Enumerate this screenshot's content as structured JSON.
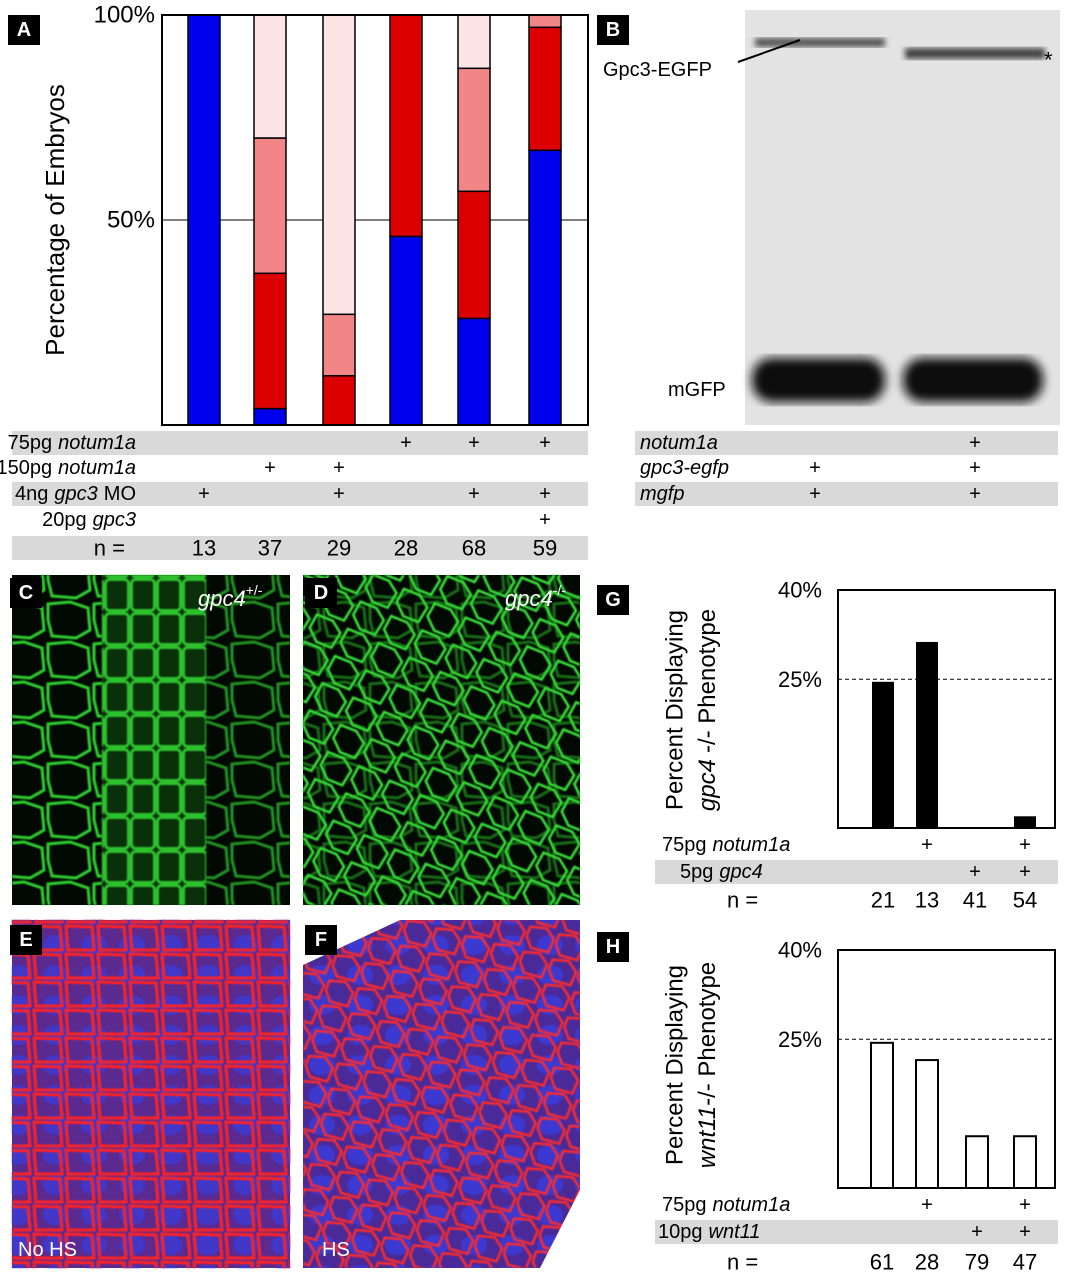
{
  "chart_data": [
    {
      "type": "stacked_bar",
      "panel_label": "A",
      "ylabel": "Percentage of Embryos",
      "ylim": [
        0,
        100
      ],
      "yticks": [
        {
          "value": 100,
          "label": "100%"
        },
        {
          "value": 50,
          "label": "50%"
        }
      ],
      "grid": true,
      "edgecolor": "#000000",
      "series": [
        {
          "color": "#0000ee",
          "values": [
            100,
            4,
            0,
            46,
            26,
            67
          ]
        },
        {
          "color": "#dd0000",
          "values": [
            0,
            33,
            12,
            54,
            31,
            30
          ]
        },
        {
          "color": "#f28585",
          "values": [
            0,
            33,
            15,
            0,
            30,
            3
          ]
        },
        {
          "color": "#fde4e4",
          "values": [
            0,
            30,
            73,
            0,
            13,
            0
          ]
        }
      ],
      "conditions": [
        {
          "dose": "75pg",
          "gene": "notum1a",
          "marks": [
            null,
            null,
            null,
            "+",
            "+",
            "+"
          ]
        },
        {
          "dose": "150pg",
          "gene": "notum1a",
          "marks": [
            null,
            "+",
            "+",
            null,
            null,
            null
          ]
        },
        {
          "dose": "4ng",
          "gene": "gpc3",
          "suffix": "MO",
          "marks": [
            "+",
            null,
            "+",
            null,
            "+",
            "+"
          ]
        },
        {
          "dose": "20pg",
          "gene": "gpc3",
          "marks": [
            null,
            null,
            null,
            null,
            null,
            "+"
          ]
        }
      ],
      "n_label": "n =",
      "n": [
        13,
        37,
        29,
        28,
        68,
        59
      ]
    },
    {
      "type": "bar",
      "panel_label": "G",
      "ylabel": {
        "line1": "Percent Displaying",
        "gene": "gpc4",
        "rest": "-/- Phenotype"
      },
      "ylim": [
        0,
        40
      ],
      "yticks": [
        {
          "value": 40,
          "label": "40%"
        },
        {
          "value": 25,
          "label": "25%"
        }
      ],
      "grid": true,
      "dashed_grid": true,
      "color": "#000000",
      "edgecolor": "#000000",
      "values": [
        24.4,
        31.1,
        0,
        1.8
      ],
      "conditions": [
        {
          "dose": "75pg",
          "gene": "notum1a",
          "marks": [
            null,
            "+",
            null,
            "+"
          ]
        },
        {
          "dose": "5pg",
          "gene": "gpc4",
          "marks": [
            null,
            null,
            "+",
            "+"
          ]
        }
      ],
      "n_label": "n =",
      "n": [
        21,
        13,
        41,
        54
      ]
    },
    {
      "type": "bar",
      "panel_label": "H",
      "ylabel": {
        "line1": "Percent Displaying",
        "gene": "wnt11",
        "rest": "-/- Phenotype"
      },
      "ylim": [
        0,
        40
      ],
      "yticks": [
        {
          "value": 40,
          "label": "40%"
        },
        {
          "value": 25,
          "label": "25%"
        }
      ],
      "grid": true,
      "dashed_grid": true,
      "color": "#ffffff",
      "edgecolor": "#000000",
      "values": [
        24.4,
        21.5,
        8.7,
        8.7
      ],
      "conditions": [
        {
          "dose": "75pg",
          "gene": "notum1a",
          "marks": [
            null,
            "+",
            null,
            "+"
          ]
        },
        {
          "dose": "10pg",
          "gene": "wnt11",
          "marks": [
            null,
            null,
            "+",
            "+"
          ]
        }
      ],
      "n_label": "n =",
      "n": [
        61,
        28,
        79,
        47
      ]
    }
  ],
  "blot": {
    "panel_label": "B",
    "band_label": "Gpc3-EGFP",
    "asterisk": "*",
    "lower_band_label": "mGFP",
    "conditions": [
      {
        "gene": "notum1a",
        "marks": [
          null,
          "+"
        ]
      },
      {
        "gene": "gpc3-egfp",
        "marks": [
          "+",
          "+"
        ]
      },
      {
        "gene": "mgfp",
        "marks": [
          "+",
          "+"
        ]
      }
    ]
  },
  "images": [
    {
      "panel_label": "C",
      "gene": "gpc4",
      "superscript": "+/-"
    },
    {
      "panel_label": "D",
      "gene": "gpc4",
      "superscript": "-/-"
    },
    {
      "panel_label": "E",
      "caption": "No HS"
    },
    {
      "panel_label": "F",
      "caption": "HS"
    }
  ]
}
